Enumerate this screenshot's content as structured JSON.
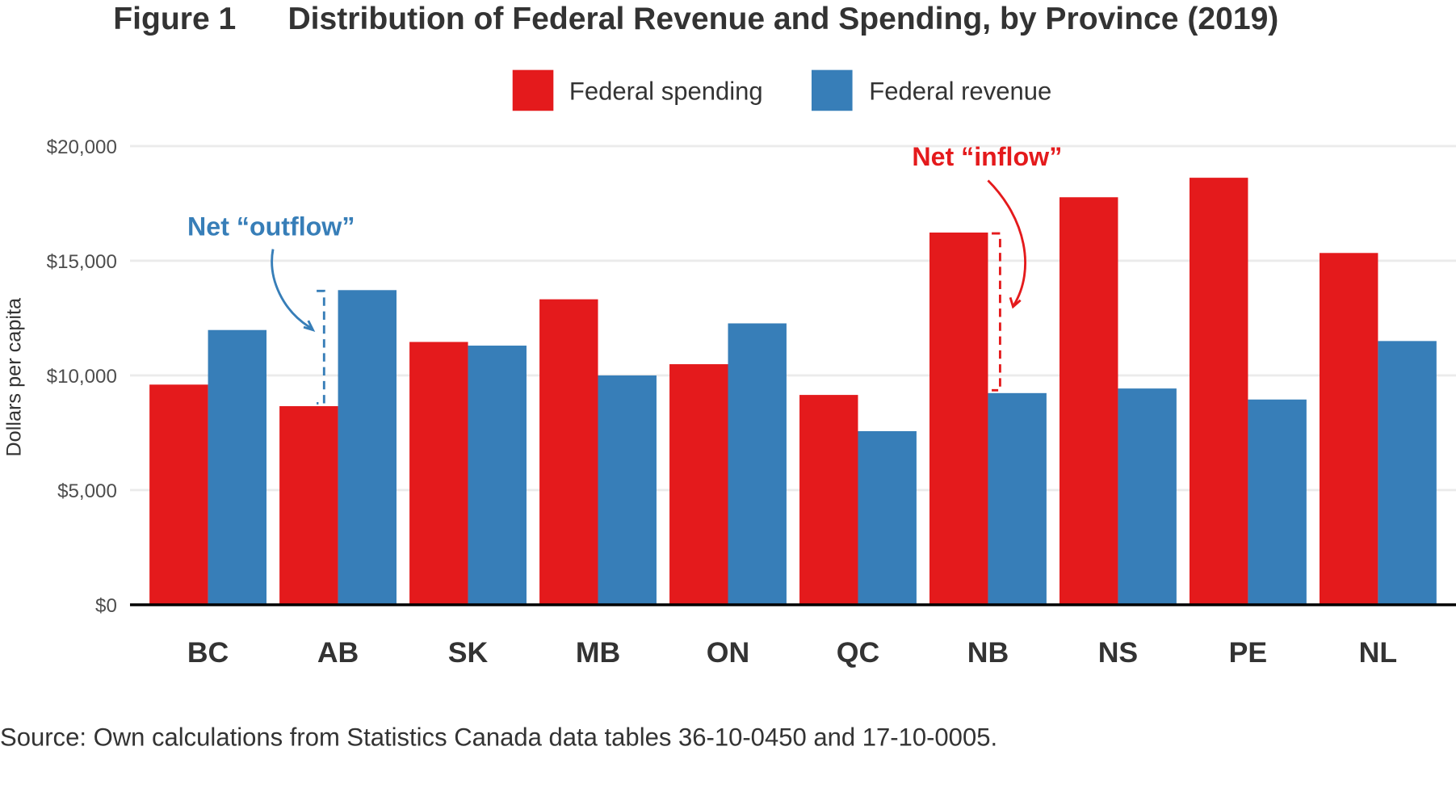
{
  "chart_data": {
    "type": "bar",
    "title_prefix": "Figure 1",
    "title": "Distribution of Federal Revenue and Spending, by Province (2019)",
    "xlabel": "",
    "ylabel": "Dollars per capita",
    "ylim": [
      0,
      20000
    ],
    "yticks": [
      0,
      5000,
      10000,
      15000,
      20000
    ],
    "ytick_labels": [
      "$0",
      "$5,000",
      "$10,000",
      "$15,000",
      "$20,000"
    ],
    "grid": true,
    "legend_position": "top",
    "categories": [
      "BC",
      "AB",
      "SK",
      "MB",
      "ON",
      "QC",
      "NB",
      "NS",
      "PE",
      "NL"
    ],
    "series": [
      {
        "name": "Federal spending",
        "color": "#e41a1c",
        "values": [
          9600,
          8660,
          11460,
          13320,
          10490,
          9150,
          16230,
          17770,
          18620,
          15340
        ]
      },
      {
        "name": "Federal revenue",
        "color": "#377eb8",
        "values": [
          11980,
          13720,
          11300,
          10000,
          12270,
          7570,
          9230,
          9430,
          8950,
          11500
        ]
      }
    ],
    "annotations": [
      {
        "text": "Net “outflow”",
        "category": "AB",
        "color": "#377eb8"
      },
      {
        "text": "Net “inflow”",
        "category": "NB",
        "color": "#e41a1c"
      }
    ],
    "source": "Source: Own calculations from Statistics Canada data tables 36-10-0450 and 17-10-0005."
  }
}
